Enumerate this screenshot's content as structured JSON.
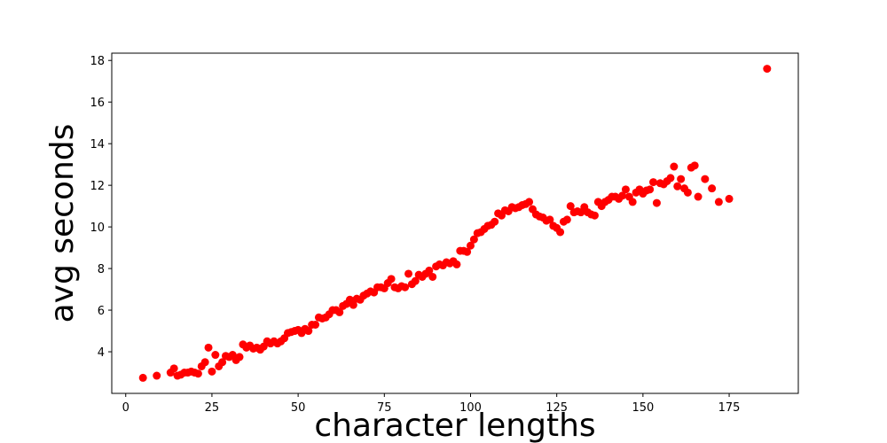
{
  "chart_data": {
    "type": "scatter",
    "xlabel": "character lengths",
    "ylabel": "avg seconds",
    "color": "#ff0000",
    "x": [
      5,
      9,
      13,
      14,
      15,
      16,
      17,
      18,
      19,
      20,
      21,
      22,
      23,
      24,
      25,
      26,
      27,
      28,
      29,
      30,
      31,
      32,
      33,
      34,
      35,
      36,
      37,
      38,
      39,
      40,
      41,
      42,
      43,
      44,
      45,
      46,
      47,
      48,
      49,
      50,
      51,
      52,
      53,
      54,
      55,
      56,
      57,
      58,
      59,
      60,
      61,
      62,
      63,
      64,
      65,
      66,
      67,
      68,
      69,
      70,
      71,
      72,
      73,
      74,
      75,
      76,
      77,
      78,
      79,
      80,
      81,
      82,
      83,
      84,
      85,
      86,
      87,
      88,
      89,
      90,
      91,
      92,
      93,
      94,
      95,
      96,
      97,
      98,
      99,
      100,
      101,
      102,
      103,
      104,
      105,
      106,
      107,
      108,
      109,
      110,
      111,
      112,
      113,
      114,
      115,
      116,
      117,
      118,
      119,
      120,
      121,
      122,
      123,
      124,
      125,
      126,
      127,
      128,
      129,
      130,
      131,
      132,
      133,
      134,
      135,
      136,
      137,
      138,
      139,
      140,
      141,
      142,
      143,
      144,
      145,
      146,
      147,
      148,
      149,
      150,
      151,
      152,
      153,
      154,
      155,
      156,
      157,
      158,
      159,
      160,
      161,
      162,
      163,
      164,
      165,
      166,
      168,
      170,
      172,
      175,
      186
    ],
    "values": [
      2.75,
      2.85,
      3.0,
      3.2,
      2.85,
      2.9,
      3.0,
      3.0,
      3.05,
      3.0,
      2.95,
      3.3,
      3.5,
      4.2,
      3.05,
      3.85,
      3.3,
      3.5,
      3.8,
      3.75,
      3.85,
      3.6,
      3.75,
      4.35,
      4.2,
      4.3,
      4.15,
      4.2,
      4.1,
      4.25,
      4.5,
      4.4,
      4.5,
      4.4,
      4.5,
      4.65,
      4.9,
      4.95,
      5.0,
      5.05,
      4.9,
      5.1,
      5.0,
      5.3,
      5.3,
      5.65,
      5.6,
      5.65,
      5.8,
      6.0,
      6.0,
      5.9,
      6.2,
      6.3,
      6.5,
      6.25,
      6.55,
      6.5,
      6.7,
      6.8,
      6.9,
      6.85,
      7.1,
      7.1,
      7.05,
      7.3,
      7.5,
      7.1,
      7.05,
      7.15,
      7.1,
      7.75,
      7.25,
      7.4,
      7.7,
      7.6,
      7.75,
      7.9,
      7.6,
      8.1,
      8.2,
      8.15,
      8.3,
      8.25,
      8.35,
      8.2,
      8.85,
      8.85,
      8.8,
      9.1,
      9.4,
      9.7,
      9.75,
      9.9,
      10.05,
      10.1,
      10.25,
      10.65,
      10.55,
      10.8,
      10.75,
      10.95,
      10.9,
      10.95,
      11.05,
      11.1,
      11.2,
      10.85,
      10.6,
      10.5,
      10.45,
      10.3,
      10.35,
      10.05,
      9.95,
      9.75,
      10.25,
      10.35,
      11.0,
      10.7,
      10.75,
      10.7,
      10.95,
      10.7,
      10.6,
      10.55,
      11.2,
      11.0,
      11.2,
      11.3,
      11.45,
      11.45,
      11.35,
      11.5,
      11.8,
      11.45,
      11.2,
      11.65,
      11.8,
      11.6,
      11.75,
      11.8,
      12.15,
      11.15,
      12.1,
      12.05,
      12.2,
      12.35,
      12.9,
      11.95,
      12.3,
      11.85,
      11.65,
      12.85,
      12.95,
      11.45,
      12.3,
      11.85,
      11.2,
      11.35,
      17.6
    ],
    "xlim": [
      -4.05,
      195.05
    ],
    "ylim": [
      2.0,
      18.35
    ],
    "xticks": [
      0,
      25,
      50,
      75,
      100,
      125,
      150,
      175
    ],
    "yticks": [
      4,
      6,
      8,
      10,
      12,
      14,
      16,
      18
    ]
  }
}
